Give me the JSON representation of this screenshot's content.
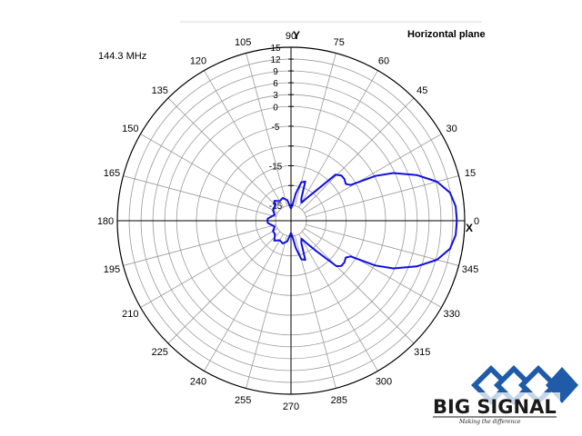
{
  "frequency_label": "144.3 MHz",
  "plane_label": "Horizontal plane",
  "axis_letters": {
    "x": "X",
    "y": "Y"
  },
  "logo": {
    "name": "BIG SIGNAL",
    "tagline": "Making the difference"
  },
  "colors": {
    "pattern": "#1010e0",
    "grid": "#9a9a9a",
    "frame": "#000000",
    "logo_blue": "#1f5ba8"
  },
  "chart_data": {
    "type": "polar",
    "angle_unit": "deg",
    "angle_labels": [
      0,
      15,
      30,
      45,
      60,
      75,
      90,
      105,
      120,
      135,
      150,
      165,
      180,
      195,
      210,
      225,
      240,
      255,
      270,
      285,
      300,
      315,
      330,
      345
    ],
    "radial_labels": [
      "15",
      "12",
      "9",
      "6",
      "3",
      "0",
      "-5",
      "-15",
      "-25"
    ],
    "radial_levels": [
      15,
      12,
      9,
      6,
      3,
      0,
      -5,
      -10,
      -15,
      -20,
      -25
    ],
    "pattern": {
      "angles": [
        0,
        5,
        10,
        15,
        20,
        25,
        28,
        31,
        34,
        38,
        42,
        46,
        50,
        55,
        60,
        65,
        70,
        75,
        80,
        85,
        90,
        100,
        110,
        120,
        130,
        140,
        150,
        160,
        170,
        175,
        180,
        185,
        190,
        200,
        210,
        220,
        230,
        240,
        250,
        260,
        270,
        275,
        280,
        285,
        290,
        295,
        300,
        305,
        310,
        315,
        318,
        322,
        326,
        329,
        332,
        335,
        340,
        345,
        350,
        355,
        360
      ],
      "radius_frac": [
        0.955,
        0.952,
        0.93,
        0.87,
        0.77,
        0.65,
        0.55,
        0.4,
        0.38,
        0.39,
        0.39,
        0.37,
        0.23,
        0.16,
        0.12,
        0.14,
        0.24,
        0.23,
        0.16,
        0.09,
        0.07,
        0.12,
        0.14,
        0.13,
        0.15,
        0.12,
        0.12,
        0.1,
        0.12,
        0.135,
        0.135,
        0.135,
        0.12,
        0.1,
        0.12,
        0.12,
        0.15,
        0.13,
        0.14,
        0.12,
        0.07,
        0.09,
        0.16,
        0.23,
        0.24,
        0.14,
        0.12,
        0.16,
        0.23,
        0.37,
        0.39,
        0.39,
        0.38,
        0.4,
        0.55,
        0.65,
        0.77,
        0.87,
        0.93,
        0.952,
        0.955
      ]
    }
  }
}
